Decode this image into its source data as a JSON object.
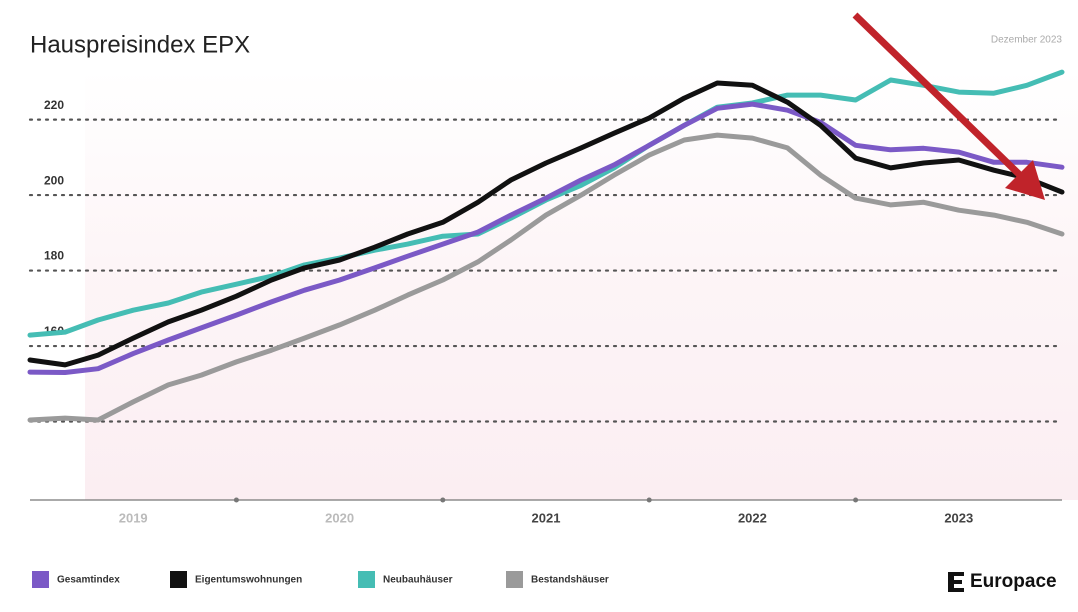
{
  "chart_data": {
    "type": "line",
    "title": "Hauspreisindex EPX",
    "subtitle": "Dezember 2023",
    "brand": "Europace",
    "x": [
      2019,
      2019.17,
      2019.33,
      2019.5,
      2019.67,
      2019.83,
      2020,
      2020.17,
      2020.33,
      2020.5,
      2020.67,
      2020.83,
      2021,
      2021.17,
      2021.33,
      2021.5,
      2021.67,
      2021.83,
      2022,
      2022.17,
      2022.33,
      2022.5,
      2022.67,
      2022.83,
      2023,
      2023.17,
      2023.33,
      2023.5,
      2023.67,
      2023.83,
      2024
    ],
    "xlim": [
      2019,
      2024
    ],
    "xticks": [
      {
        "value": 2019.5,
        "label": "2019"
      },
      {
        "value": 2020.5,
        "label": "2020"
      },
      {
        "value": 2021.5,
        "label": "2021"
      },
      {
        "value": 2022.5,
        "label": "2022"
      },
      {
        "value": 2023.5,
        "label": "2023"
      }
    ],
    "xdividers": [
      2020,
      2021,
      2022,
      2023
    ],
    "ylim": [
      120,
      235
    ],
    "yticks": [
      160,
      180,
      200,
      220
    ],
    "gridlines": [
      140,
      160,
      180,
      200,
      220
    ],
    "grid": true,
    "series": [
      {
        "name": "Gesamtindex",
        "color": "#7b59c6",
        "values": [
          153.1,
          153,
          154,
          158,
          161.6,
          164.8,
          168.2,
          171.7,
          174.8,
          177.5,
          180.7,
          183.8,
          187,
          190.2,
          194.7,
          199.2,
          204,
          208,
          213.2,
          218.5,
          223,
          224.1,
          222.5,
          219.3,
          213.2,
          212,
          212.4,
          211.4,
          208.7,
          208.7,
          207.4
        ]
      },
      {
        "name": "Eigentumswohnungen",
        "color": "#111111",
        "values": [
          156.3,
          155,
          157.6,
          162.1,
          166.4,
          169.5,
          173.2,
          177.5,
          180.7,
          182.8,
          186.2,
          189.7,
          192.8,
          198.1,
          204,
          208.5,
          212.5,
          216.4,
          220.4,
          225.7,
          229.7,
          229.1,
          224.6,
          218.5,
          209.8,
          207.2,
          208.5,
          209.3,
          206.6,
          204.5,
          200.8
        ]
      },
      {
        "name": "Neubauhäuser",
        "color": "#45bdb4",
        "values": [
          162.9,
          163.7,
          166.9,
          169.5,
          171.4,
          174.3,
          176.4,
          178.5,
          181.5,
          183.3,
          185.4,
          187,
          189.1,
          189.7,
          193.9,
          198.7,
          202.6,
          207.2,
          213.2,
          218.5,
          223.3,
          224.4,
          226.5,
          226.5,
          225.2,
          230.5,
          229.1,
          227.3,
          227,
          229.1,
          232.6
        ]
      },
      {
        "name": "Bestandshäuser",
        "color": "#9a9a9a",
        "values": [
          140.4,
          140.9,
          140.4,
          145.2,
          149.7,
          152.3,
          155.8,
          158.9,
          162.1,
          165.6,
          169.5,
          173.5,
          177.5,
          182.3,
          188.1,
          194.7,
          200,
          205.3,
          210.6,
          214.6,
          215.9,
          215.1,
          212.5,
          205.3,
          199.2,
          197.4,
          198.1,
          196,
          194.7,
          192.8,
          189.7
        ]
      }
    ]
  }
}
